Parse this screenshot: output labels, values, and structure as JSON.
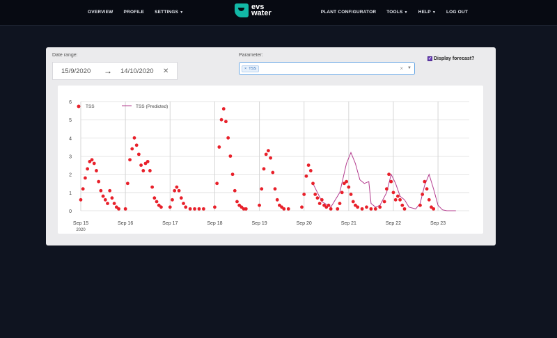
{
  "nav": {
    "left": [
      "OVERVIEW",
      "PROFILE",
      "SETTINGS"
    ],
    "right": [
      "PLANT CONFIGURATOR",
      "TOOLS",
      "HELP",
      "LOG OUT"
    ],
    "logo_line1": "evs",
    "logo_line2": "water"
  },
  "filters": {
    "date_label": "Date range:",
    "start_date": "15/9/2020",
    "end_date": "14/10/2020",
    "parameter_label": "Parameter:",
    "parameter_chip": "TSS",
    "forecast_label": "Display forecast?"
  },
  "colors": {
    "observed": "#e8202a",
    "predicted": "#b33b8e"
  },
  "chart_data": {
    "type": "scatter",
    "ylim": [
      0,
      6
    ],
    "yticks": [
      0,
      1,
      2,
      3,
      4,
      5,
      6
    ],
    "xticks": [
      "Sep 15",
      "Sep 16",
      "Sep 17",
      "Sep 18",
      "Sep 19",
      "Sep 20",
      "Sep 21",
      "Sep 22",
      "Sep 23"
    ],
    "x_year": "2020",
    "series": [
      {
        "name": "TSS",
        "mode": "markers",
        "points": [
          [
            0.0,
            0.6
          ],
          [
            0.05,
            1.2
          ],
          [
            0.1,
            1.8
          ],
          [
            0.15,
            2.3
          ],
          [
            0.2,
            2.7
          ],
          [
            0.25,
            2.8
          ],
          [
            0.3,
            2.6
          ],
          [
            0.35,
            2.2
          ],
          [
            0.4,
            1.6
          ],
          [
            0.45,
            1.1
          ],
          [
            0.5,
            0.8
          ],
          [
            0.55,
            0.6
          ],
          [
            0.6,
            0.4
          ],
          [
            0.65,
            1.1
          ],
          [
            0.7,
            0.7
          ],
          [
            0.75,
            0.4
          ],
          [
            0.8,
            0.2
          ],
          [
            0.85,
            0.1
          ],
          [
            1.0,
            0.1
          ],
          [
            1.05,
            1.5
          ],
          [
            1.1,
            2.8
          ],
          [
            1.15,
            3.4
          ],
          [
            1.2,
            4.0
          ],
          [
            1.25,
            3.6
          ],
          [
            1.3,
            3.1
          ],
          [
            1.35,
            2.5
          ],
          [
            1.4,
            2.2
          ],
          [
            1.45,
            2.6
          ],
          [
            1.5,
            2.7
          ],
          [
            1.55,
            2.2
          ],
          [
            1.6,
            1.3
          ],
          [
            1.65,
            0.7
          ],
          [
            1.7,
            0.5
          ],
          [
            1.75,
            0.3
          ],
          [
            1.8,
            0.2
          ],
          [
            2.0,
            0.2
          ],
          [
            2.05,
            0.6
          ],
          [
            2.1,
            1.1
          ],
          [
            2.15,
            1.3
          ],
          [
            2.2,
            1.1
          ],
          [
            2.25,
            0.7
          ],
          [
            2.3,
            0.4
          ],
          [
            2.35,
            0.2
          ],
          [
            2.45,
            0.1
          ],
          [
            2.55,
            0.1
          ],
          [
            2.65,
            0.1
          ],
          [
            2.75,
            0.1
          ],
          [
            3.0,
            0.2
          ],
          [
            3.05,
            1.5
          ],
          [
            3.1,
            3.5
          ],
          [
            3.15,
            5.0
          ],
          [
            3.2,
            5.6
          ],
          [
            3.25,
            4.9
          ],
          [
            3.3,
            4.0
          ],
          [
            3.35,
            3.0
          ],
          [
            3.4,
            2.0
          ],
          [
            3.45,
            1.1
          ],
          [
            3.5,
            0.5
          ],
          [
            3.55,
            0.3
          ],
          [
            3.6,
            0.2
          ],
          [
            3.65,
            0.1
          ],
          [
            3.7,
            0.1
          ],
          [
            4.0,
            0.3
          ],
          [
            4.05,
            1.2
          ],
          [
            4.1,
            2.3
          ],
          [
            4.15,
            3.1
          ],
          [
            4.2,
            3.3
          ],
          [
            4.25,
            2.9
          ],
          [
            4.3,
            2.1
          ],
          [
            4.35,
            1.2
          ],
          [
            4.4,
            0.6
          ],
          [
            4.45,
            0.3
          ],
          [
            4.5,
            0.2
          ],
          [
            4.55,
            0.1
          ],
          [
            4.65,
            0.1
          ],
          [
            4.95,
            0.2
          ],
          [
            5.0,
            0.9
          ],
          [
            5.05,
            1.9
          ],
          [
            5.1,
            2.5
          ],
          [
            5.15,
            2.2
          ],
          [
            5.2,
            1.5
          ],
          [
            5.25,
            0.9
          ],
          [
            5.3,
            0.7
          ],
          [
            5.35,
            0.4
          ],
          [
            5.4,
            0.6
          ],
          [
            5.45,
            0.3
          ],
          [
            5.5,
            0.2
          ],
          [
            5.55,
            0.3
          ],
          [
            5.6,
            0.1
          ],
          [
            5.75,
            0.1
          ],
          [
            5.8,
            0.4
          ],
          [
            5.85,
            1.0
          ],
          [
            5.9,
            1.5
          ],
          [
            5.95,
            1.6
          ],
          [
            6.0,
            1.3
          ],
          [
            6.05,
            0.9
          ],
          [
            6.1,
            0.5
          ],
          [
            6.15,
            0.3
          ],
          [
            6.2,
            0.2
          ],
          [
            6.3,
            0.1
          ],
          [
            6.4,
            0.2
          ],
          [
            6.5,
            0.1
          ],
          [
            6.6,
            0.1
          ],
          [
            6.7,
            0.2
          ],
          [
            6.8,
            0.5
          ],
          [
            6.85,
            1.2
          ],
          [
            6.9,
            2.0
          ],
          [
            6.95,
            1.6
          ],
          [
            7.0,
            1.0
          ],
          [
            7.05,
            0.6
          ],
          [
            7.1,
            0.8
          ],
          [
            7.15,
            0.6
          ],
          [
            7.2,
            0.3
          ],
          [
            7.25,
            0.1
          ],
          [
            7.6,
            0.3
          ],
          [
            7.65,
            0.9
          ],
          [
            7.7,
            1.6
          ],
          [
            7.75,
            1.2
          ],
          [
            7.8,
            0.6
          ],
          [
            7.85,
            0.2
          ],
          [
            7.9,
            0.1
          ]
        ]
      },
      {
        "name": "TSS (Predicted)",
        "mode": "lines",
        "points": [
          [
            5.2,
            1.5
          ],
          [
            5.4,
            0.5
          ],
          [
            5.6,
            0.2
          ],
          [
            5.8,
            1.0
          ],
          [
            5.95,
            2.6
          ],
          [
            6.05,
            3.2
          ],
          [
            6.15,
            2.6
          ],
          [
            6.25,
            1.7
          ],
          [
            6.35,
            1.5
          ],
          [
            6.45,
            1.6
          ],
          [
            6.5,
            0.4
          ],
          [
            6.6,
            0.2
          ],
          [
            6.7,
            0.3
          ],
          [
            6.85,
            1.0
          ],
          [
            6.95,
            2.0
          ],
          [
            7.05,
            1.5
          ],
          [
            7.15,
            0.8
          ],
          [
            7.25,
            0.6
          ],
          [
            7.35,
            0.2
          ],
          [
            7.5,
            0.1
          ],
          [
            7.6,
            0.4
          ],
          [
            7.7,
            1.4
          ],
          [
            7.8,
            2.0
          ],
          [
            7.9,
            1.2
          ],
          [
            8.0,
            0.3
          ],
          [
            8.1,
            0.05
          ],
          [
            8.2,
            0.0
          ],
          [
            8.4,
            0.0
          ]
        ]
      }
    ]
  }
}
